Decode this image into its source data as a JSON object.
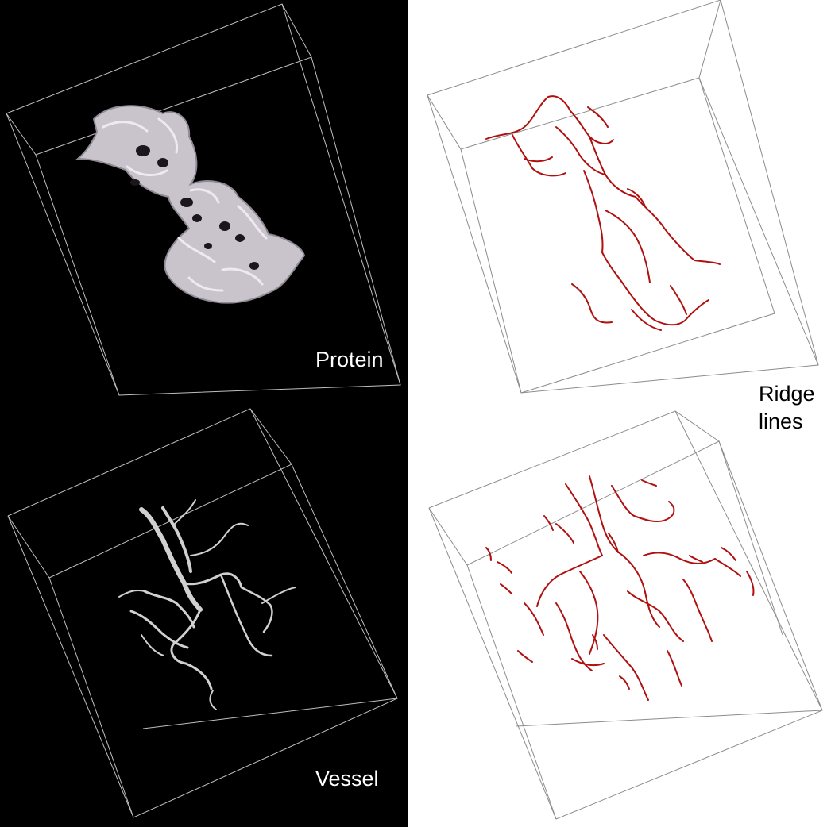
{
  "figure": {
    "panels": [
      {
        "id": "protein-volume",
        "caption": "Protein"
      },
      {
        "id": "vessel-volume",
        "caption": "Vessel"
      },
      {
        "id": "protein-ridges"
      },
      {
        "id": "vessel-ridges"
      }
    ],
    "right_column_caption_line1": "Ridge",
    "right_column_caption_line2": "lines"
  },
  "colors": {
    "dark_background": "#000000",
    "light_background": "#ffffff",
    "box_on_dark": "#bfbfbf",
    "box_on_light": "#8c8c8c",
    "protein_surface": "#c9c3cc",
    "vessel_surface": "#d0d0d0",
    "ridge_line": "#b01010"
  }
}
